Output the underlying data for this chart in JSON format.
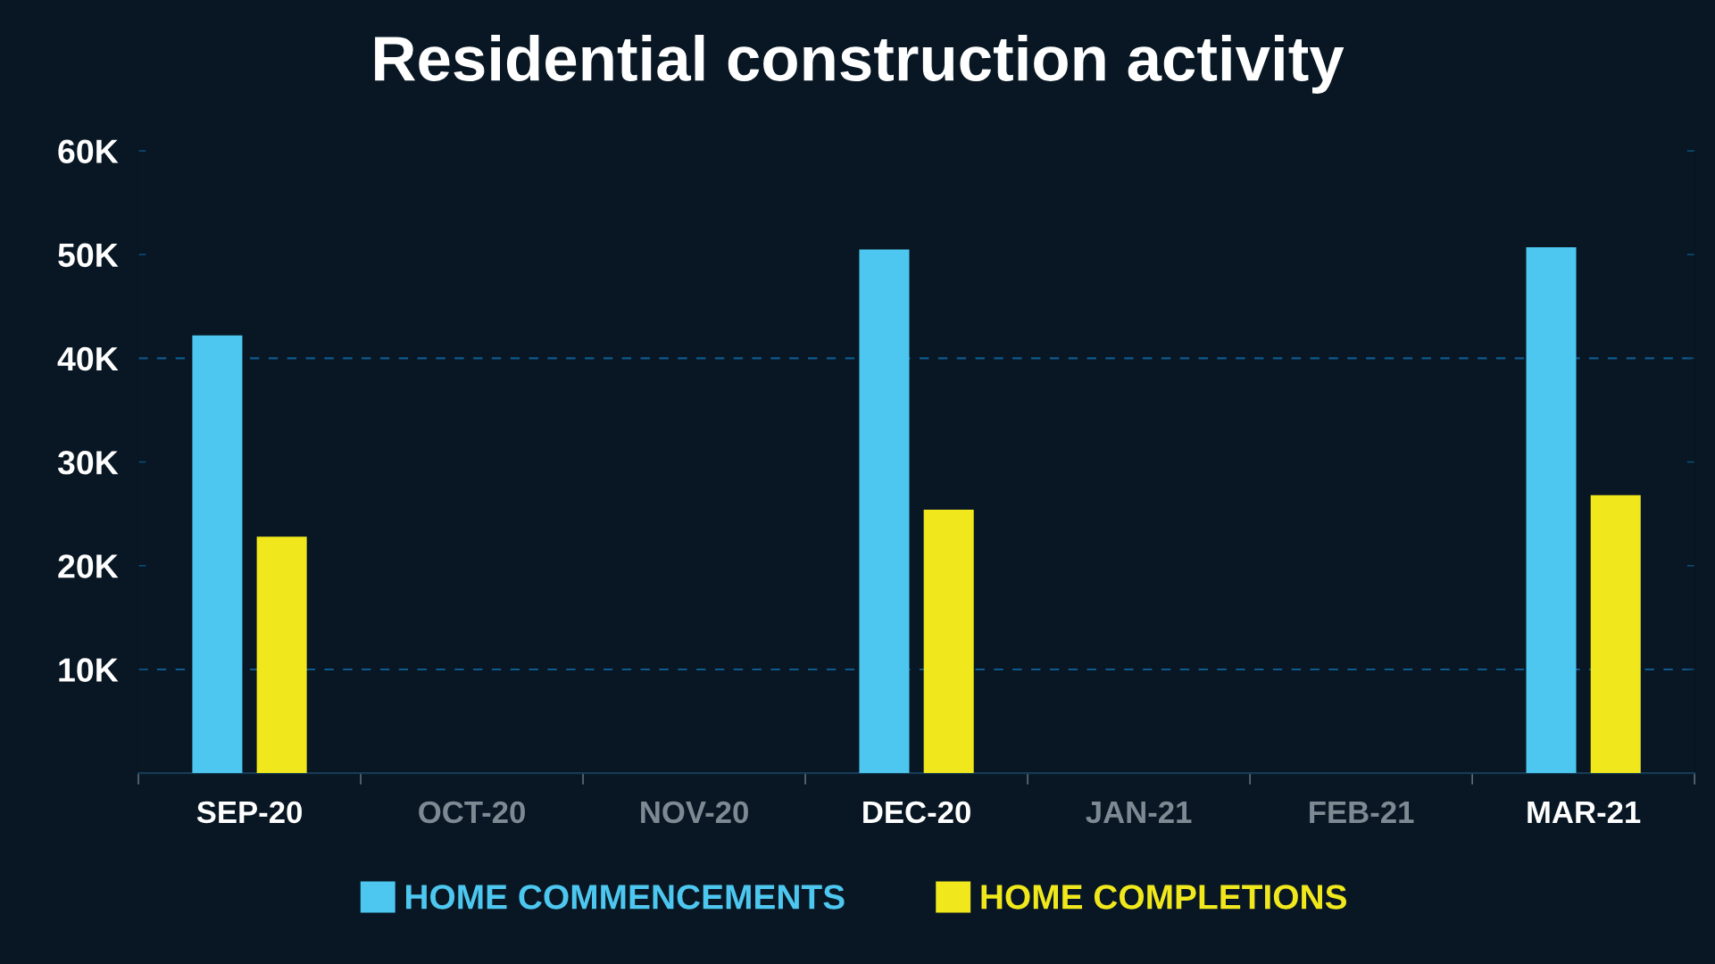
{
  "chart_data": {
    "type": "bar",
    "title": "Residential construction activity",
    "categories": [
      "SEP-20",
      "OCT-20",
      "NOV-20",
      "DEC-20",
      "JAN-21",
      "FEB-21",
      "MAR-21"
    ],
    "series": [
      {
        "name": "HOME COMMENCEMENTS",
        "color": "#4dc7ef",
        "values": [
          42200,
          null,
          null,
          50500,
          null,
          null,
          50700
        ]
      },
      {
        "name": "HOME COMPLETIONS",
        "color": "#f0e81c",
        "values": [
          22800,
          null,
          null,
          25400,
          null,
          null,
          26800
        ]
      }
    ],
    "ylim": [
      0,
      60000
    ],
    "yticks": [
      {
        "value": 0,
        "label": null
      },
      {
        "value": 10000,
        "label": "10K"
      },
      {
        "value": 20000,
        "label": "20K"
      },
      {
        "value": 30000,
        "label": "30K"
      },
      {
        "value": 40000,
        "label": "40K"
      },
      {
        "value": 50000,
        "label": "50K"
      },
      {
        "value": 60000,
        "label": "60K"
      }
    ],
    "ref_lines": [
      {
        "axis": "y",
        "value": 10000,
        "color": "#0e5a8e",
        "line_style": "dashed"
      },
      {
        "axis": "y",
        "value": 40000,
        "color": "#0e5a8e",
        "line_style": "dashed"
      }
    ],
    "legend": "bottom"
  }
}
